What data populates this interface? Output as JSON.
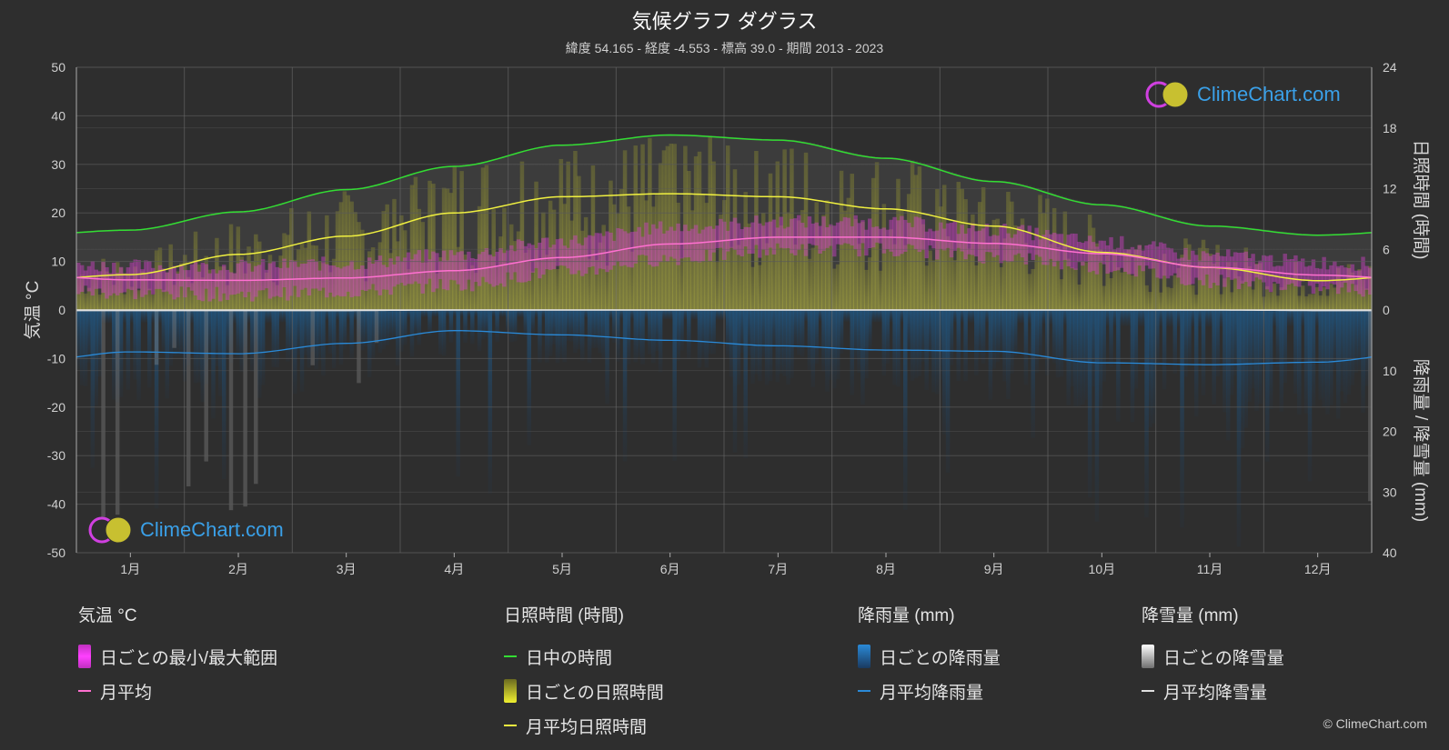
{
  "header": {
    "title": "気候グラフ ダグラス",
    "subtitle": "緯度 54.165 - 経度 -4.553 - 標高 39.0 - 期間 2013 - 2023"
  },
  "logo": {
    "text": "ClimeChart.com"
  },
  "copyright": "© ClimeChart.com",
  "legend": {
    "temperature": {
      "title": "気温 °C",
      "items": [
        {
          "label": "日ごとの最小/最大範囲",
          "color": "#e040e0"
        },
        {
          "label": "月平均",
          "color": "#ff70d0"
        }
      ]
    },
    "sunshine": {
      "title": "日照時間 (時間)",
      "items": [
        {
          "label": "日中の時間",
          "color": "#33dd33"
        },
        {
          "label": "日ごとの日照時間",
          "color": "#d8d830"
        },
        {
          "label": "月平均日照時間",
          "color": "#f0f040"
        }
      ]
    },
    "rain": {
      "title": "降雨量 (mm)",
      "items": [
        {
          "label": "日ごとの降雨量",
          "color": "#2a8ad8"
        },
        {
          "label": "月平均降雨量",
          "color": "#2a8ad8"
        }
      ]
    },
    "snow": {
      "title": "降雪量 (mm)",
      "items": [
        {
          "label": "日ごとの降雪量",
          "color": "#e0e0e0"
        },
        {
          "label": "月平均降雪量",
          "color": "#e0e0e0"
        }
      ]
    }
  },
  "chart_data": {
    "type": "line",
    "categories": [
      "1月",
      "2月",
      "3月",
      "4月",
      "5月",
      "6月",
      "7月",
      "8月",
      "9月",
      "10月",
      "11月",
      "12月"
    ],
    "left_axis": {
      "label": "気温 °C",
      "range": [
        -50,
        50
      ],
      "ticks": [
        50,
        40,
        30,
        20,
        10,
        0,
        -10,
        -20,
        -30,
        -40,
        -50
      ]
    },
    "right_axis_top": {
      "label": "日照時間 (時間)",
      "range": [
        0,
        24
      ],
      "ticks": [
        24,
        18,
        12,
        6,
        0
      ]
    },
    "right_axis_bottom": {
      "label": "降雨量 / 降雪量 (mm)",
      "range": [
        0,
        40
      ],
      "ticks": [
        0,
        10,
        20,
        30,
        40
      ]
    },
    "grid": true,
    "series": [
      {
        "name": "日中の時間",
        "axis": "sunshine",
        "color": "#33dd33",
        "values": [
          7.9,
          9.7,
          11.9,
          14.2,
          16.3,
          17.3,
          16.8,
          15.0,
          12.7,
          10.4,
          8.3,
          7.4
        ]
      },
      {
        "name": "月平均日照時間",
        "axis": "sunshine",
        "color": "#f0f040",
        "values": [
          3.5,
          5.5,
          7.3,
          9.6,
          11.2,
          11.5,
          11.2,
          10.0,
          8.3,
          5.7,
          4.2,
          2.9
        ]
      },
      {
        "name": "月平均",
        "axis": "temperature",
        "color": "#ff70d0",
        "values": [
          6.2,
          6.1,
          6.6,
          8.1,
          10.8,
          13.6,
          15.0,
          15.0,
          13.7,
          11.6,
          8.8,
          7.2
        ]
      },
      {
        "name": "月平均降雨量",
        "axis": "rain",
        "color": "#2a8ad8",
        "values": [
          6.9,
          7.2,
          5.5,
          3.4,
          4.1,
          5.0,
          5.9,
          6.6,
          6.8,
          8.7,
          9.0,
          8.6
        ]
      },
      {
        "name": "月平均降雪量",
        "axis": "rain",
        "color": "#e0e0e0",
        "values": [
          0.1,
          0.1,
          0.1,
          0,
          0,
          0,
          0,
          0,
          0,
          0,
          0,
          0.1
        ]
      }
    ],
    "daily_temperature_range": {
      "min": [
        3.5,
        3.2,
        3.8,
        5.2,
        7.8,
        10.6,
        12.4,
        12.5,
        11.0,
        8.8,
        6.0,
        4.5
      ],
      "max": [
        9.0,
        9.0,
        9.6,
        11.4,
        14.2,
        17.0,
        18.2,
        18.0,
        16.5,
        14.0,
        11.2,
        9.8
      ]
    },
    "daily_daylight_envelope": [
      8.0,
      9.8,
      12.0,
      14.3,
      16.4,
      17.4,
      16.9,
      15.1,
      12.8,
      10.5,
      8.4,
      7.5
    ]
  }
}
